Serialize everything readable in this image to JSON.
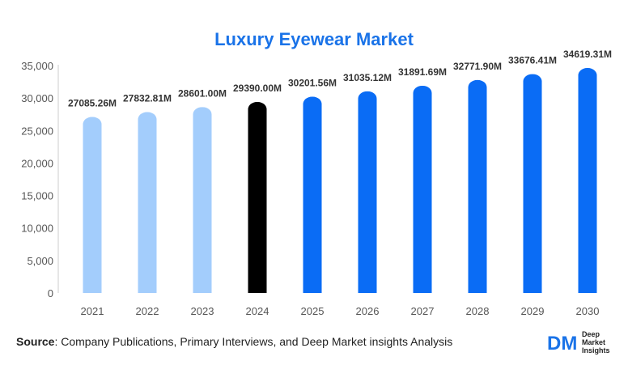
{
  "chart_data": {
    "type": "bar",
    "title": "Luxury Eyewear Market",
    "xlabel": "",
    "ylabel": "",
    "categories": [
      "2021",
      "2022",
      "2023",
      "2024",
      "2025",
      "2026",
      "2027",
      "2028",
      "2029",
      "2030"
    ],
    "values": [
      27085.26,
      27832.81,
      28601.0,
      29390.0,
      30201.56,
      31035.12,
      31891.69,
      32771.9,
      33676.41,
      34619.31
    ],
    "data_labels": [
      "27085.26M",
      "27832.81M",
      "28601.00M",
      "29390.00M",
      "30201.56M",
      "31035.12M",
      "31891.69M",
      "32771.90M",
      "33676.41M",
      "34619.31M"
    ],
    "ylim": [
      0,
      35000
    ],
    "yticks": [
      "0",
      "5,000",
      "10,000",
      "15,000",
      "20,000",
      "25,000",
      "30,000",
      "35,000"
    ],
    "ytick_values": [
      0,
      5000,
      10000,
      15000,
      20000,
      25000,
      30000,
      35000
    ],
    "grid": false,
    "bar_colors": [
      "#a3cdfc",
      "#a3cdfc",
      "#a3cdfc",
      "#000000",
      "#0a6cf5",
      "#0a6cf5",
      "#0a6cf5",
      "#0a6cf5",
      "#0a6cf5",
      "#0a6cf5"
    ]
  },
  "source": {
    "prefix": "Source",
    "text": ": Company Publications, Primary Interviews, and Deep Market insights Analysis"
  },
  "logo": {
    "mark": "DM",
    "line1": "Deep",
    "line2": "Market",
    "line3": "Insights",
    "color": "#1a73e8"
  }
}
